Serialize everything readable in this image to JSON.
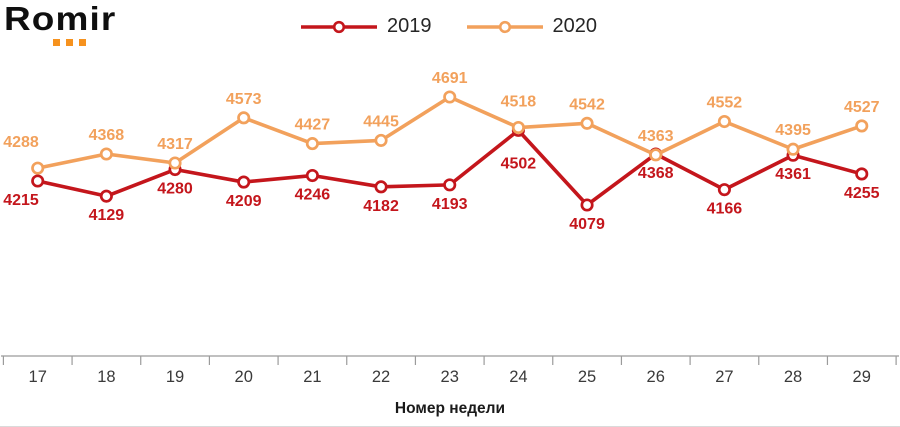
{
  "logo": {
    "text": "Romir",
    "text_color": "#0F0F0F",
    "dots_color": "#F6921E"
  },
  "legend": {
    "items": [
      {
        "label": "2019",
        "color": "#C4161C"
      },
      {
        "label": "2020",
        "color": "#F2A15C"
      }
    ]
  },
  "chart_data": {
    "type": "line",
    "title": "",
    "categories": [
      "17",
      "18",
      "19",
      "20",
      "21",
      "22",
      "23",
      "24",
      "25",
      "26",
      "27",
      "28",
      "29"
    ],
    "series": [
      {
        "name": "2019",
        "color": "#C4161C",
        "marker": "open-circle",
        "label_position": "below",
        "values": [
          4215,
          4129,
          4280,
          4209,
          4246,
          4182,
          4193,
          4502,
          4079,
          4368,
          4166,
          4361,
          4255
        ],
        "label_offsets": [
          0,
          0,
          0,
          0,
          0,
          0,
          0,
          14,
          0,
          0,
          0,
          0,
          0
        ]
      },
      {
        "name": "2020",
        "color": "#F2A15C",
        "marker": "open-circle",
        "label_position": "above",
        "values": [
          4288,
          4368,
          4317,
          4573,
          4427,
          4445,
          4691,
          4518,
          4542,
          4363,
          4552,
          4395,
          4527
        ],
        "label_offsets": [
          -7,
          0,
          0,
          0,
          0,
          0,
          0,
          -7,
          0,
          0,
          0,
          0,
          0
        ]
      }
    ],
    "xlabel": "Номер недели",
    "ylabel": "",
    "ylim": [
      4079,
      4691
    ],
    "grid": false,
    "y_axis_visible": false,
    "legend_position": "top-center",
    "axis_color": "#9B9B9B",
    "tick_label_color": "#3A3A3A"
  }
}
